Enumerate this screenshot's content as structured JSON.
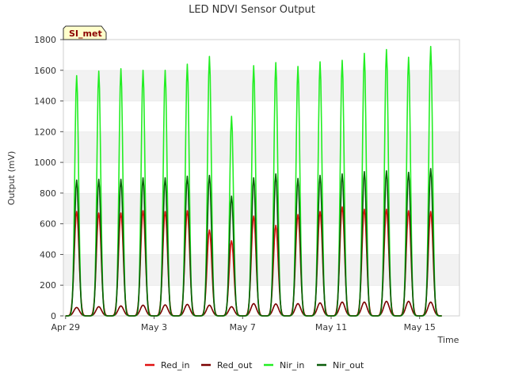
{
  "chart_data": {
    "type": "line",
    "title": "LED NDVI Sensor Output",
    "xlabel": "Time",
    "ylabel": "Output (mV)",
    "ylim": [
      0,
      1800
    ],
    "yticks": [
      0,
      200,
      400,
      600,
      800,
      1000,
      1200,
      1400,
      1600,
      1800
    ],
    "xlim_days": [
      -0.1,
      17.8
    ],
    "xticks": [
      {
        "day": 0,
        "label": "Apr 29"
      },
      {
        "day": 4,
        "label": "May 3"
      },
      {
        "day": 8,
        "label": "May 7"
      },
      {
        "day": 12,
        "label": "May 11"
      },
      {
        "day": 16,
        "label": "May 15"
      }
    ],
    "site_badge": "SI_met",
    "grid": "alternating horizontal bands",
    "legend_position": "bottom",
    "peak_time_of_day": 0.5,
    "series": [
      {
        "name": "Red_in",
        "color": "#e01010",
        "daily_peaks": [
          680,
          670,
          670,
          685,
          680,
          685,
          560,
          490,
          650,
          590,
          660,
          680,
          710,
          695,
          695,
          685,
          680
        ]
      },
      {
        "name": "Red_out",
        "color": "#7a0000",
        "daily_peaks": [
          55,
          60,
          65,
          70,
          72,
          75,
          70,
          60,
          80,
          78,
          80,
          85,
          90,
          90,
          95,
          95,
          90
        ]
      },
      {
        "name": "Nir_in",
        "color": "#22ee22",
        "daily_peaks": [
          1565,
          1595,
          1610,
          1600,
          1600,
          1640,
          1690,
          1300,
          1630,
          1650,
          1625,
          1655,
          1665,
          1710,
          1735,
          1685,
          1755
        ]
      },
      {
        "name": "Nir_out",
        "color": "#0a5c0a",
        "daily_peaks": [
          885,
          890,
          890,
          900,
          900,
          910,
          915,
          780,
          900,
          925,
          895,
          915,
          925,
          940,
          945,
          935,
          960
        ]
      }
    ]
  }
}
